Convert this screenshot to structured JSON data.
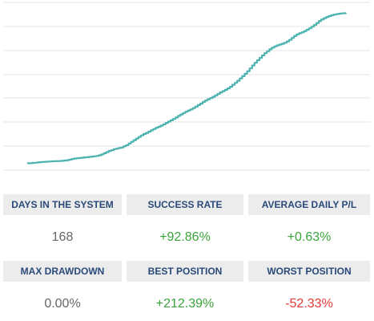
{
  "chart_data": {
    "type": "line",
    "xlabel": "",
    "ylabel": "",
    "color": "#4db3b0",
    "grid": true,
    "values": [
      0.3,
      0.3,
      0.5,
      0.6,
      0.8,
      1.0,
      1.1,
      1.2,
      1.3,
      1.4,
      1.5,
      1.6,
      1.6,
      1.7,
      1.8,
      2.0,
      2.2,
      2.5,
      2.9,
      3.2,
      3.4,
      3.5,
      3.7,
      3.9,
      4.0,
      4.2,
      4.4,
      4.6,
      4.8,
      5.2,
      5.8,
      6.5,
      7.2,
      7.9,
      8.3,
      9.0,
      9.3,
      9.7,
      10.0,
      10.8,
      11.5,
      12.5,
      13.5,
      14.5,
      15.5,
      16.5,
      17.5,
      18.3,
      19.0,
      19.8,
      20.6,
      21.4,
      22.2,
      22.8,
      23.5,
      24.3,
      25.2,
      26.0,
      26.8,
      27.6,
      28.5,
      29.5,
      30.4,
      31.3,
      32.1,
      32.8,
      33.5,
      34.3,
      35.2,
      36.2,
      37.1,
      38.1,
      39.0,
      39.8,
      40.5,
      41.3,
      42.2,
      43.1,
      44.0,
      44.8,
      45.6,
      46.5,
      47.5,
      48.7,
      49.9,
      51.2,
      52.6,
      54.0,
      55.5,
      57.1,
      58.8,
      60.6,
      62.3,
      63.8,
      65.3,
      66.8,
      68.2,
      69.4,
      70.6,
      71.6,
      72.4,
      73.0,
      73.5,
      74.0,
      74.6,
      75.4,
      76.4,
      77.6,
      78.8,
      79.8,
      80.5,
      81.1,
      81.8,
      82.6,
      83.5,
      84.5,
      85.6,
      86.8,
      88.0,
      89.0,
      89.8,
      90.5,
      91.1,
      91.6,
      92.0,
      92.3,
      92.5,
      92.7,
      92.8,
      92.86
    ],
    "ylim": [
      0,
      100
    ]
  },
  "stats": {
    "days": {
      "label": "DAYS IN THE SYSTEM",
      "value": "168",
      "color": "#666666"
    },
    "success": {
      "label": "SUCCESS RATE",
      "value": "+92.86%",
      "color": "#3aa53a"
    },
    "avg_daily": {
      "label": "AVERAGE DAILY P/L",
      "value": "+0.63%",
      "color": "#3aa53a"
    },
    "max_drawdown": {
      "label": "MAX DRAWDOWN",
      "value": "0.00%",
      "color": "#666666"
    },
    "best": {
      "label": "BEST POSITION",
      "value": "+212.39%",
      "color": "#3aa53a"
    },
    "worst": {
      "label": "WORST POSITION",
      "value": "-52.33%",
      "color": "#e53935"
    }
  }
}
